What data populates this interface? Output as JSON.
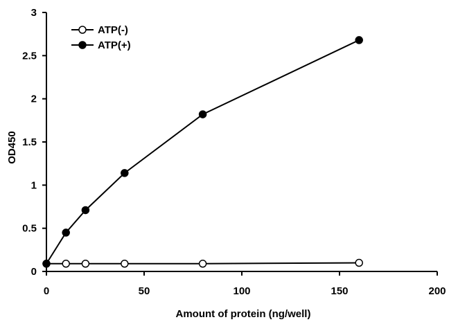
{
  "chart_data": {
    "type": "line",
    "xlabel": "Amount of protein (ng/well)",
    "ylabel": "OD450",
    "xlim": [
      0,
      200
    ],
    "ylim": [
      0,
      3
    ],
    "xticks": [
      "0",
      "50",
      "100",
      "150",
      "200"
    ],
    "yticks": [
      "0",
      "0.5",
      "1",
      "1.5",
      "2",
      "2.5",
      "3"
    ],
    "grid": false,
    "legend_position": "top-left",
    "series": [
      {
        "name": "ATP(-)",
        "marker": "open-circle",
        "color": "#000000",
        "x": [
          0,
          10,
          20,
          40,
          80,
          160
        ],
        "y": [
          0.09,
          0.09,
          0.09,
          0.09,
          0.09,
          0.1
        ]
      },
      {
        "name": "ATP(+)",
        "marker": "filled-circle",
        "color": "#000000",
        "x": [
          0,
          10,
          20,
          40,
          80,
          160
        ],
        "y": [
          0.09,
          0.45,
          0.71,
          1.14,
          1.82,
          2.68
        ]
      }
    ]
  }
}
